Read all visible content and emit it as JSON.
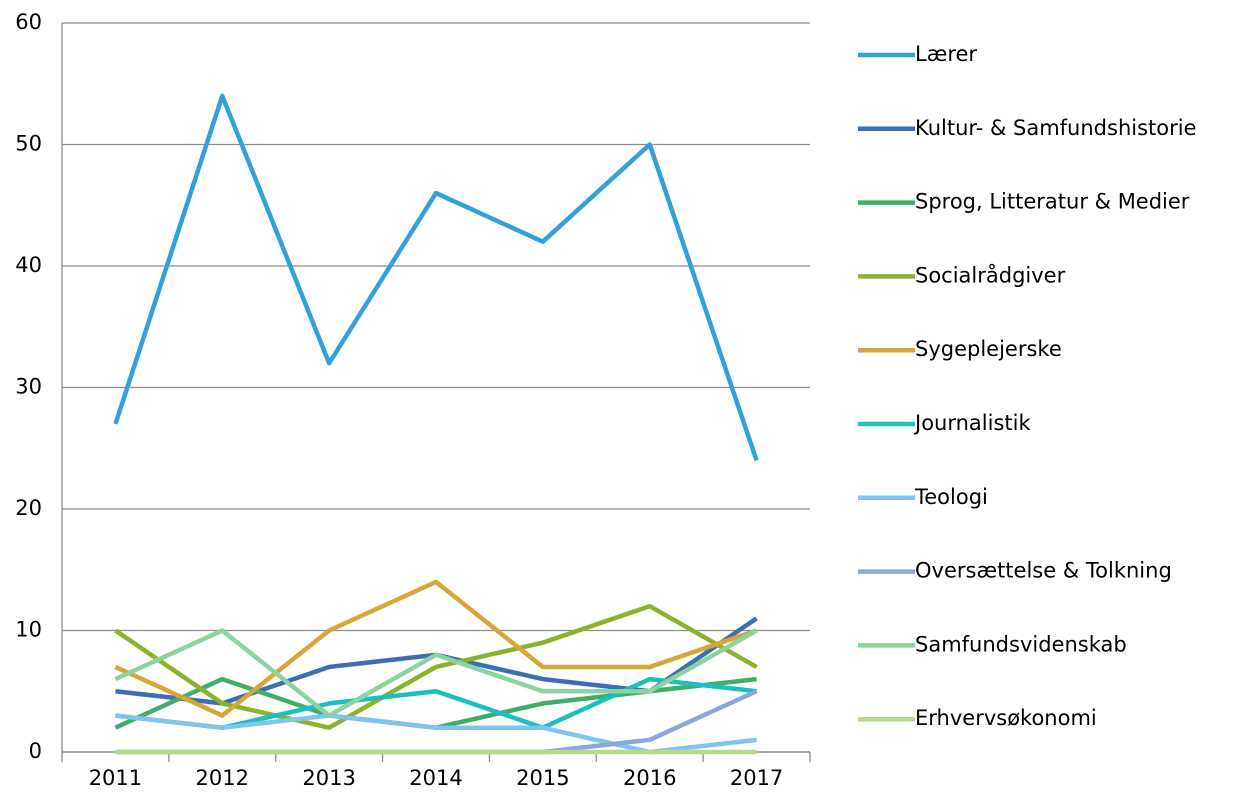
{
  "chart_data": {
    "type": "line",
    "categories": [
      "2011",
      "2012",
      "2013",
      "2014",
      "2015",
      "2016",
      "2017"
    ],
    "series": [
      {
        "name": "Lærer",
        "color": "#31a0db",
        "values": [
          27,
          54,
          32,
          46,
          42,
          50,
          24
        ]
      },
      {
        "name": "Kultur- & Samfundshistorie",
        "color": "#3a6fb3",
        "values": [
          5,
          4,
          7,
          8,
          6,
          5,
          11
        ]
      },
      {
        "name": "Sprog, Litteratur & Medier",
        "color": "#3fae68",
        "values": [
          2,
          6,
          3,
          2,
          4,
          5,
          6
        ]
      },
      {
        "name": "Socialrådgiver",
        "color": "#8cb22a",
        "values": [
          10,
          4,
          2,
          7,
          9,
          12,
          7
        ]
      },
      {
        "name": "Sygeplejerske",
        "color": "#d8a537",
        "values": [
          7,
          3,
          10,
          14,
          7,
          7,
          10
        ]
      },
      {
        "name": "Journalistik",
        "color": "#1cbfc0",
        "values": [
          3,
          2,
          4,
          5,
          2,
          6,
          5
        ]
      },
      {
        "name": "Teologi",
        "color": "#80c4f0",
        "values": [
          3,
          2,
          3,
          2,
          2,
          0,
          1
        ]
      },
      {
        "name": "Oversættelse & Tolkning",
        "color": "#8ba6d8",
        "values": [
          0,
          0,
          0,
          0,
          0,
          1,
          5
        ]
      },
      {
        "name": "Samfundsvidenskab",
        "color": "#8ad4a2",
        "values": [
          6,
          10,
          3,
          8,
          5,
          5,
          10
        ]
      },
      {
        "name": "Erhvervsøkonomi",
        "color": "#b6d98b",
        "values": [
          0,
          0,
          0,
          0,
          0,
          0,
          0
        ]
      }
    ],
    "ylim": [
      0,
      60
    ],
    "yticks": [
      0,
      10,
      20,
      30,
      40,
      50,
      60
    ],
    "grid": true,
    "legend": "right"
  }
}
